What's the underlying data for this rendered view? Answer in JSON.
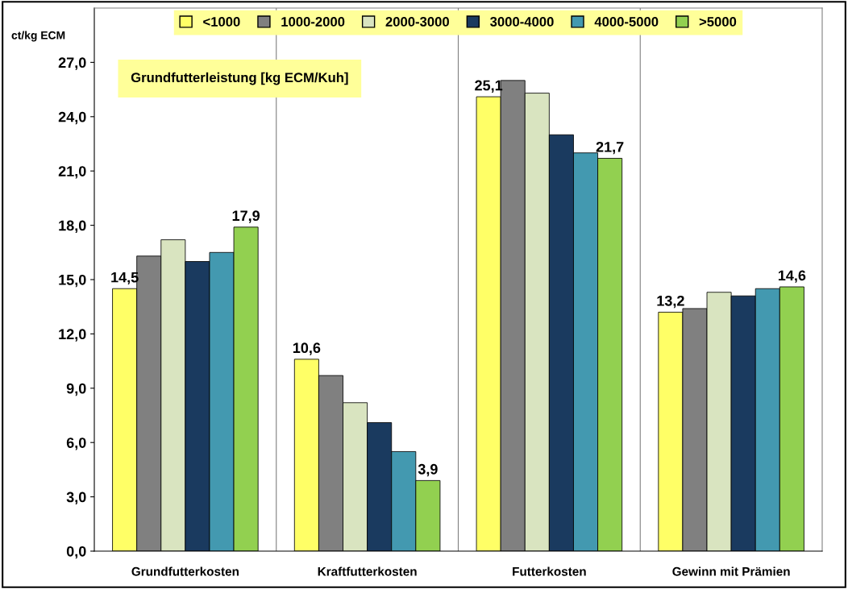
{
  "chart_data": {
    "type": "bar",
    "ylabel": "ct/kg ECM",
    "legend_title": "Grundfutterleistung [kg ECM/Kuh]",
    "categories": [
      "Grundfutterkosten",
      "Kraftfutterkosten",
      "Futterkosten",
      "Gewinn mit Prämien"
    ],
    "series": [
      {
        "name": "<1000",
        "color": "#ffff66",
        "values": [
          14.5,
          10.6,
          25.1,
          13.2
        ],
        "value_labels": [
          "14,5",
          "10,6",
          "25,1",
          "13,2"
        ]
      },
      {
        "name": "1000-2000",
        "color": "#808080",
        "values": [
          16.3,
          9.7,
          26.0,
          13.4
        ]
      },
      {
        "name": "2000-3000",
        "color": "#d9e4c0",
        "values": [
          17.2,
          8.2,
          25.3,
          14.3
        ]
      },
      {
        "name": "3000-4000",
        "color": "#1a3a5f",
        "values": [
          16.0,
          7.1,
          23.0,
          14.1
        ]
      },
      {
        "name": "4000-5000",
        "color": "#4399b0",
        "values": [
          16.5,
          5.5,
          22.0,
          14.5
        ]
      },
      {
        "name": ">5000",
        "color": "#92d050",
        "values": [
          17.9,
          3.9,
          21.7,
          14.6
        ],
        "value_labels": [
          "17,9",
          "3,9",
          "21,7",
          "14,6"
        ]
      }
    ],
    "ylim": [
      0,
      30
    ],
    "yticks": [
      {
        "value": 0,
        "label": "0,0"
      },
      {
        "value": 3,
        "label": "3,0"
      },
      {
        "value": 6,
        "label": "6,0"
      },
      {
        "value": 9,
        "label": "9,0"
      },
      {
        "value": 12,
        "label": "12,0"
      },
      {
        "value": 15,
        "label": "15,0"
      },
      {
        "value": 18,
        "label": "18,0"
      },
      {
        "value": 21,
        "label": "21,0"
      },
      {
        "value": 24,
        "label": "24,0"
      },
      {
        "value": 27,
        "label": "27,0"
      }
    ],
    "grid": "x",
    "legend": "top"
  }
}
